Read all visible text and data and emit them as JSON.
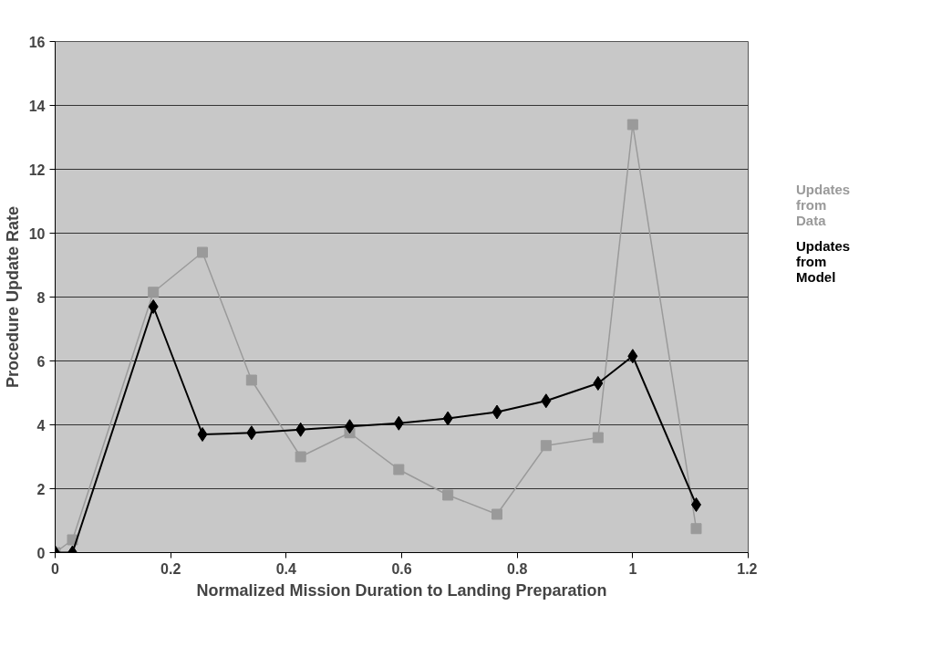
{
  "chart_data": {
    "type": "line",
    "xlabel": "Normalized Mission Duration to Landing Preparation",
    "ylabel": "Procedure Update Rate",
    "x": [
      0,
      0.03,
      0.17,
      0.255,
      0.34,
      0.425,
      0.51,
      0.595,
      0.68,
      0.765,
      0.85,
      0.94,
      1.0,
      1.11
    ],
    "series": [
      {
        "name": "Updates from Data",
        "color": "#9a9a9a",
        "marker": "square",
        "values": [
          0,
          0.4,
          8.15,
          9.4,
          5.4,
          3.0,
          3.75,
          2.6,
          1.8,
          1.2,
          3.35,
          3.6,
          13.4,
          0.75
        ]
      },
      {
        "name": "Updates from Model",
        "color": "#000000",
        "marker": "diamond",
        "values": [
          0,
          0,
          7.7,
          3.7,
          3.75,
          3.85,
          3.95,
          4.05,
          4.2,
          4.4,
          4.75,
          5.3,
          6.15,
          1.5
        ]
      }
    ],
    "xlim": [
      0,
      1.2
    ],
    "xticks": [
      0,
      0.2,
      0.4,
      0.6,
      0.8,
      1,
      1.2
    ],
    "ylim": [
      0,
      16
    ],
    "yticks": [
      0,
      2,
      4,
      6,
      8,
      10,
      12,
      14,
      16
    ],
    "grid": "y",
    "legend": "right",
    "line_style": "solid"
  }
}
